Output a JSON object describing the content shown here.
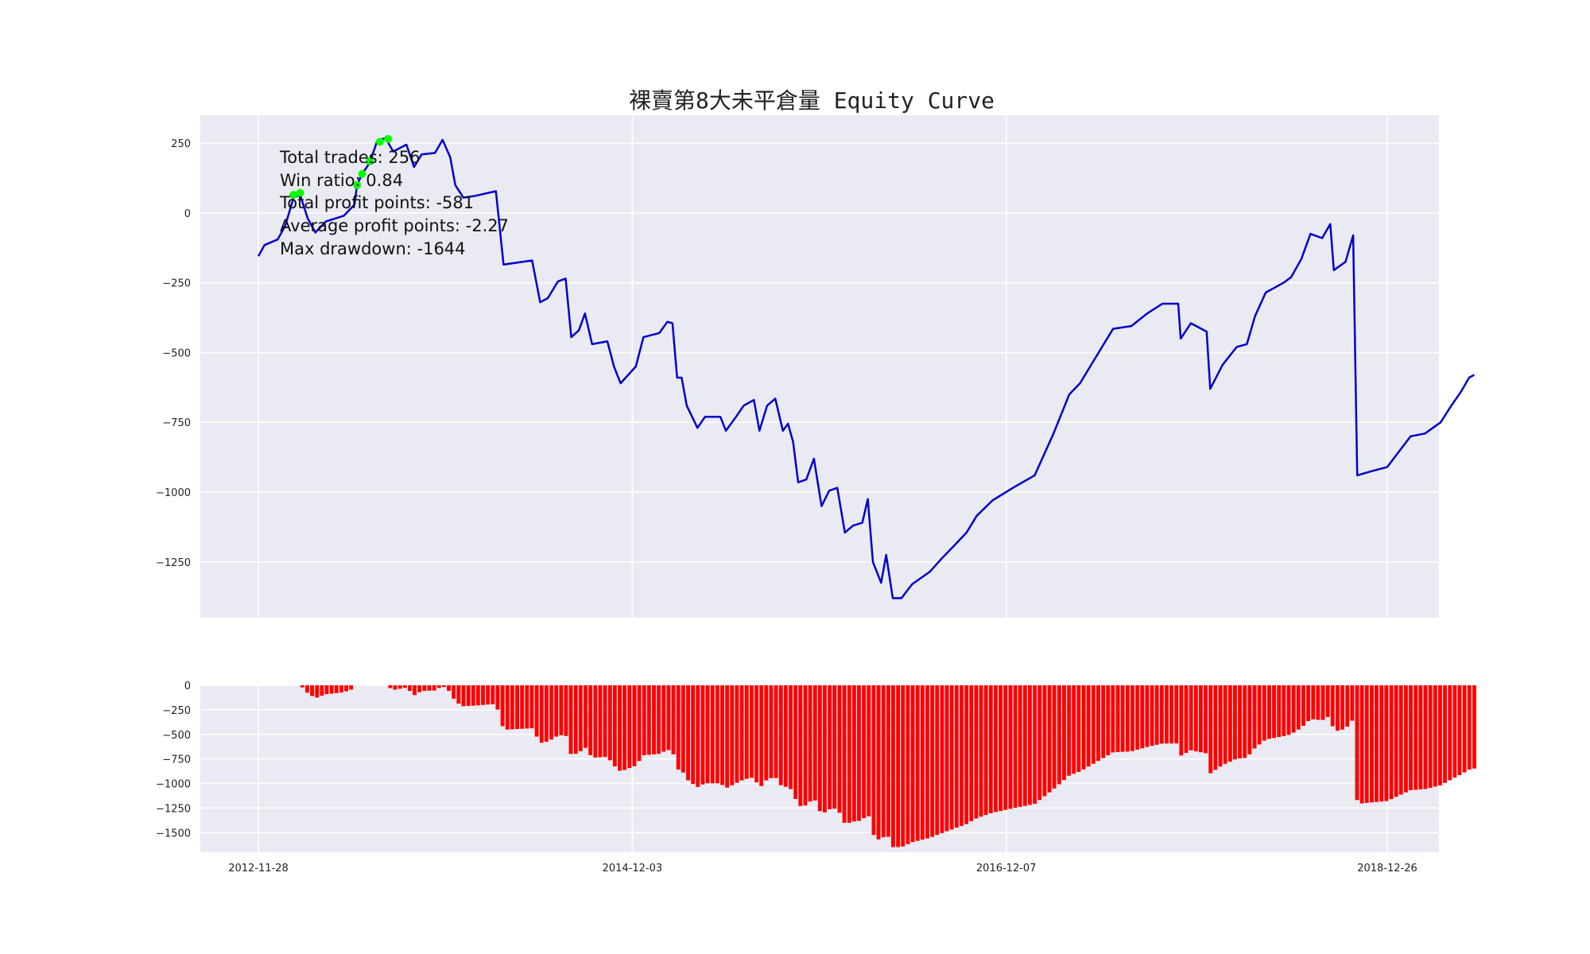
{
  "chart_data": [
    {
      "type": "line",
      "title": "裸賣第8大未平倉量 Equity Curve",
      "ylim": [
        -1450,
        350
      ],
      "yticks": [
        250,
        0,
        -250,
        -500,
        -750,
        -1000,
        -1250
      ],
      "ytick_labels": [
        "250",
        "0",
        "−250",
        "−500",
        "−750",
        "−1000",
        "−1250"
      ],
      "grid": true,
      "x_start": "2012-11-28",
      "x_end": "2019-07-10",
      "series": [
        {
          "color": "#0000cc",
          "points": [
            [
              "2012-11-28",
              -155
            ],
            [
              "2012-12-10",
              -115
            ],
            [
              "2013-01-05",
              -95
            ],
            [
              "2013-01-20",
              -45
            ],
            [
              "2013-02-05",
              55
            ],
            [
              "2013-02-18",
              65
            ],
            [
              "2013-03-05",
              -20
            ],
            [
              "2013-03-20",
              -70
            ],
            [
              "2013-04-10",
              -30
            ],
            [
              "2013-05-15",
              -10
            ],
            [
              "2013-06-05",
              30
            ],
            [
              "2013-06-10",
              100
            ],
            [
              "2013-06-20",
              140
            ],
            [
              "2013-07-05",
              180
            ],
            [
              "2013-07-20",
              260
            ],
            [
              "2013-08-05",
              268
            ],
            [
              "2013-08-20",
              220
            ],
            [
              "2013-09-15",
              245
            ],
            [
              "2013-09-30",
              165
            ],
            [
              "2013-10-15",
              210
            ],
            [
              "2013-11-10",
              215
            ],
            [
              "2013-11-25",
              262
            ],
            [
              "2013-12-10",
              200
            ],
            [
              "2013-12-20",
              100
            ],
            [
              "2014-01-05",
              55
            ],
            [
              "2014-01-25",
              60
            ],
            [
              "2014-03-10",
              78
            ],
            [
              "2014-03-25",
              -185
            ],
            [
              "2014-05-20",
              -170
            ],
            [
              "2014-06-05",
              -320
            ],
            [
              "2014-06-20",
              -305
            ],
            [
              "2014-07-10",
              -245
            ],
            [
              "2014-07-25",
              -235
            ],
            [
              "2014-08-05",
              -445
            ],
            [
              "2014-08-20",
              -420
            ],
            [
              "2014-09-01",
              -360
            ],
            [
              "2014-09-15",
              -470
            ],
            [
              "2014-10-15",
              -460
            ],
            [
              "2014-10-28",
              -550
            ],
            [
              "2014-11-10",
              -610
            ],
            [
              "2014-12-10",
              -550
            ],
            [
              "2014-12-25",
              -445
            ],
            [
              "2015-01-25",
              -430
            ],
            [
              "2015-02-10",
              -390
            ],
            [
              "2015-02-20",
              -395
            ],
            [
              "2015-03-01",
              -590
            ],
            [
              "2015-03-10",
              -590
            ],
            [
              "2015-03-20",
              -690
            ],
            [
              "2015-04-10",
              -770
            ],
            [
              "2015-04-25",
              -730
            ],
            [
              "2015-05-25",
              -730
            ],
            [
              "2015-06-05",
              -780
            ],
            [
              "2015-06-25",
              -730
            ],
            [
              "2015-07-10",
              -690
            ],
            [
              "2015-07-30",
              -670
            ],
            [
              "2015-08-10",
              -780
            ],
            [
              "2015-08-25",
              -690
            ],
            [
              "2015-09-10",
              -665
            ],
            [
              "2015-09-25",
              -780
            ],
            [
              "2015-10-05",
              -755
            ],
            [
              "2015-10-15",
              -820
            ],
            [
              "2015-10-25",
              -965
            ],
            [
              "2015-11-10",
              -955
            ],
            [
              "2015-11-25",
              -880
            ],
            [
              "2015-12-10",
              -1050
            ],
            [
              "2015-12-25",
              -995
            ],
            [
              "2016-01-10",
              -985
            ],
            [
              "2016-01-25",
              -1145
            ],
            [
              "2016-02-10",
              -1120
            ],
            [
              "2016-02-28",
              -1110
            ],
            [
              "2016-03-10",
              -1025
            ],
            [
              "2016-03-20",
              -1250
            ],
            [
              "2016-04-05",
              -1325
            ],
            [
              "2016-04-15",
              -1225
            ],
            [
              "2016-04-28",
              -1380
            ],
            [
              "2016-05-15",
              -1380
            ],
            [
              "2016-06-05",
              -1330
            ],
            [
              "2016-07-10",
              -1285
            ],
            [
              "2016-08-01",
              -1240
            ],
            [
              "2016-08-25",
              -1195
            ],
            [
              "2016-09-20",
              -1145
            ],
            [
              "2016-10-10",
              -1085
            ],
            [
              "2016-11-10",
              -1030
            ],
            [
              "2016-12-20",
              -985
            ],
            [
              "2017-02-01",
              -940
            ],
            [
              "2017-03-10",
              -790
            ],
            [
              "2017-04-10",
              -650
            ],
            [
              "2017-05-01",
              -610
            ],
            [
              "2017-06-10",
              -490
            ],
            [
              "2017-07-05",
              -415
            ],
            [
              "2017-08-10",
              -405
            ],
            [
              "2017-09-10",
              -360
            ],
            [
              "2017-10-10",
              -325
            ],
            [
              "2017-11-10",
              -325
            ],
            [
              "2017-11-15",
              -450
            ],
            [
              "2017-12-05",
              -395
            ],
            [
              "2018-01-05",
              -425
            ],
            [
              "2018-01-12",
              -630
            ],
            [
              "2018-02-05",
              -545
            ],
            [
              "2018-03-05",
              -480
            ],
            [
              "2018-03-25",
              -470
            ],
            [
              "2018-04-10",
              -370
            ],
            [
              "2018-05-01",
              -285
            ],
            [
              "2018-06-05",
              -250
            ],
            [
              "2018-06-20",
              -230
            ],
            [
              "2018-07-10",
              -165
            ],
            [
              "2018-07-28",
              -75
            ],
            [
              "2018-08-20",
              -90
            ],
            [
              "2018-09-05",
              -40
            ],
            [
              "2018-09-12",
              -205
            ],
            [
              "2018-10-05",
              -175
            ],
            [
              "2018-10-20",
              -80
            ],
            [
              "2018-10-28",
              -940
            ],
            [
              "2018-11-25",
              -925
            ],
            [
              "2018-12-26",
              -910
            ],
            [
              "2019-02-10",
              -800
            ],
            [
              "2019-03-10",
              -790
            ],
            [
              "2019-04-10",
              -750
            ],
            [
              "2019-05-01",
              -690
            ],
            [
              "2019-05-20",
              -640
            ],
            [
              "2019-06-05",
              -590
            ],
            [
              "2019-06-15",
              -580
            ]
          ]
        }
      ],
      "markers": {
        "color": "#00ff00",
        "points": [
          [
            "2013-02-05",
            65
          ],
          [
            "2013-02-18",
            72
          ],
          [
            "2013-06-10",
            100
          ],
          [
            "2013-06-20",
            140
          ],
          [
            "2013-07-05",
            185
          ],
          [
            "2013-07-25",
            255
          ],
          [
            "2013-08-10",
            265
          ]
        ]
      },
      "annotations": [
        "Total trades: 256",
        "Win ratio: 0.84",
        "Total profit points: -581",
        "Average profit points: -2.27",
        "Max drawdown: -1644"
      ]
    },
    {
      "type": "bar",
      "color": "#ff0000",
      "ylim": [
        -1700,
        0
      ],
      "yticks": [
        0,
        -250,
        -500,
        -750,
        -1000,
        -1250,
        -1500
      ],
      "ytick_labels": [
        "0",
        "−250",
        "−500",
        "−750",
        "−1000",
        "−1250",
        "−1500"
      ],
      "grid": true,
      "xticks": [
        "2012-11-28",
        "2014-12-03",
        "2016-12-07",
        "2018-12-26"
      ],
      "x_start": "2012-11-28",
      "x_end": "2019-07-10",
      "drawdown_from_series": 0
    }
  ]
}
